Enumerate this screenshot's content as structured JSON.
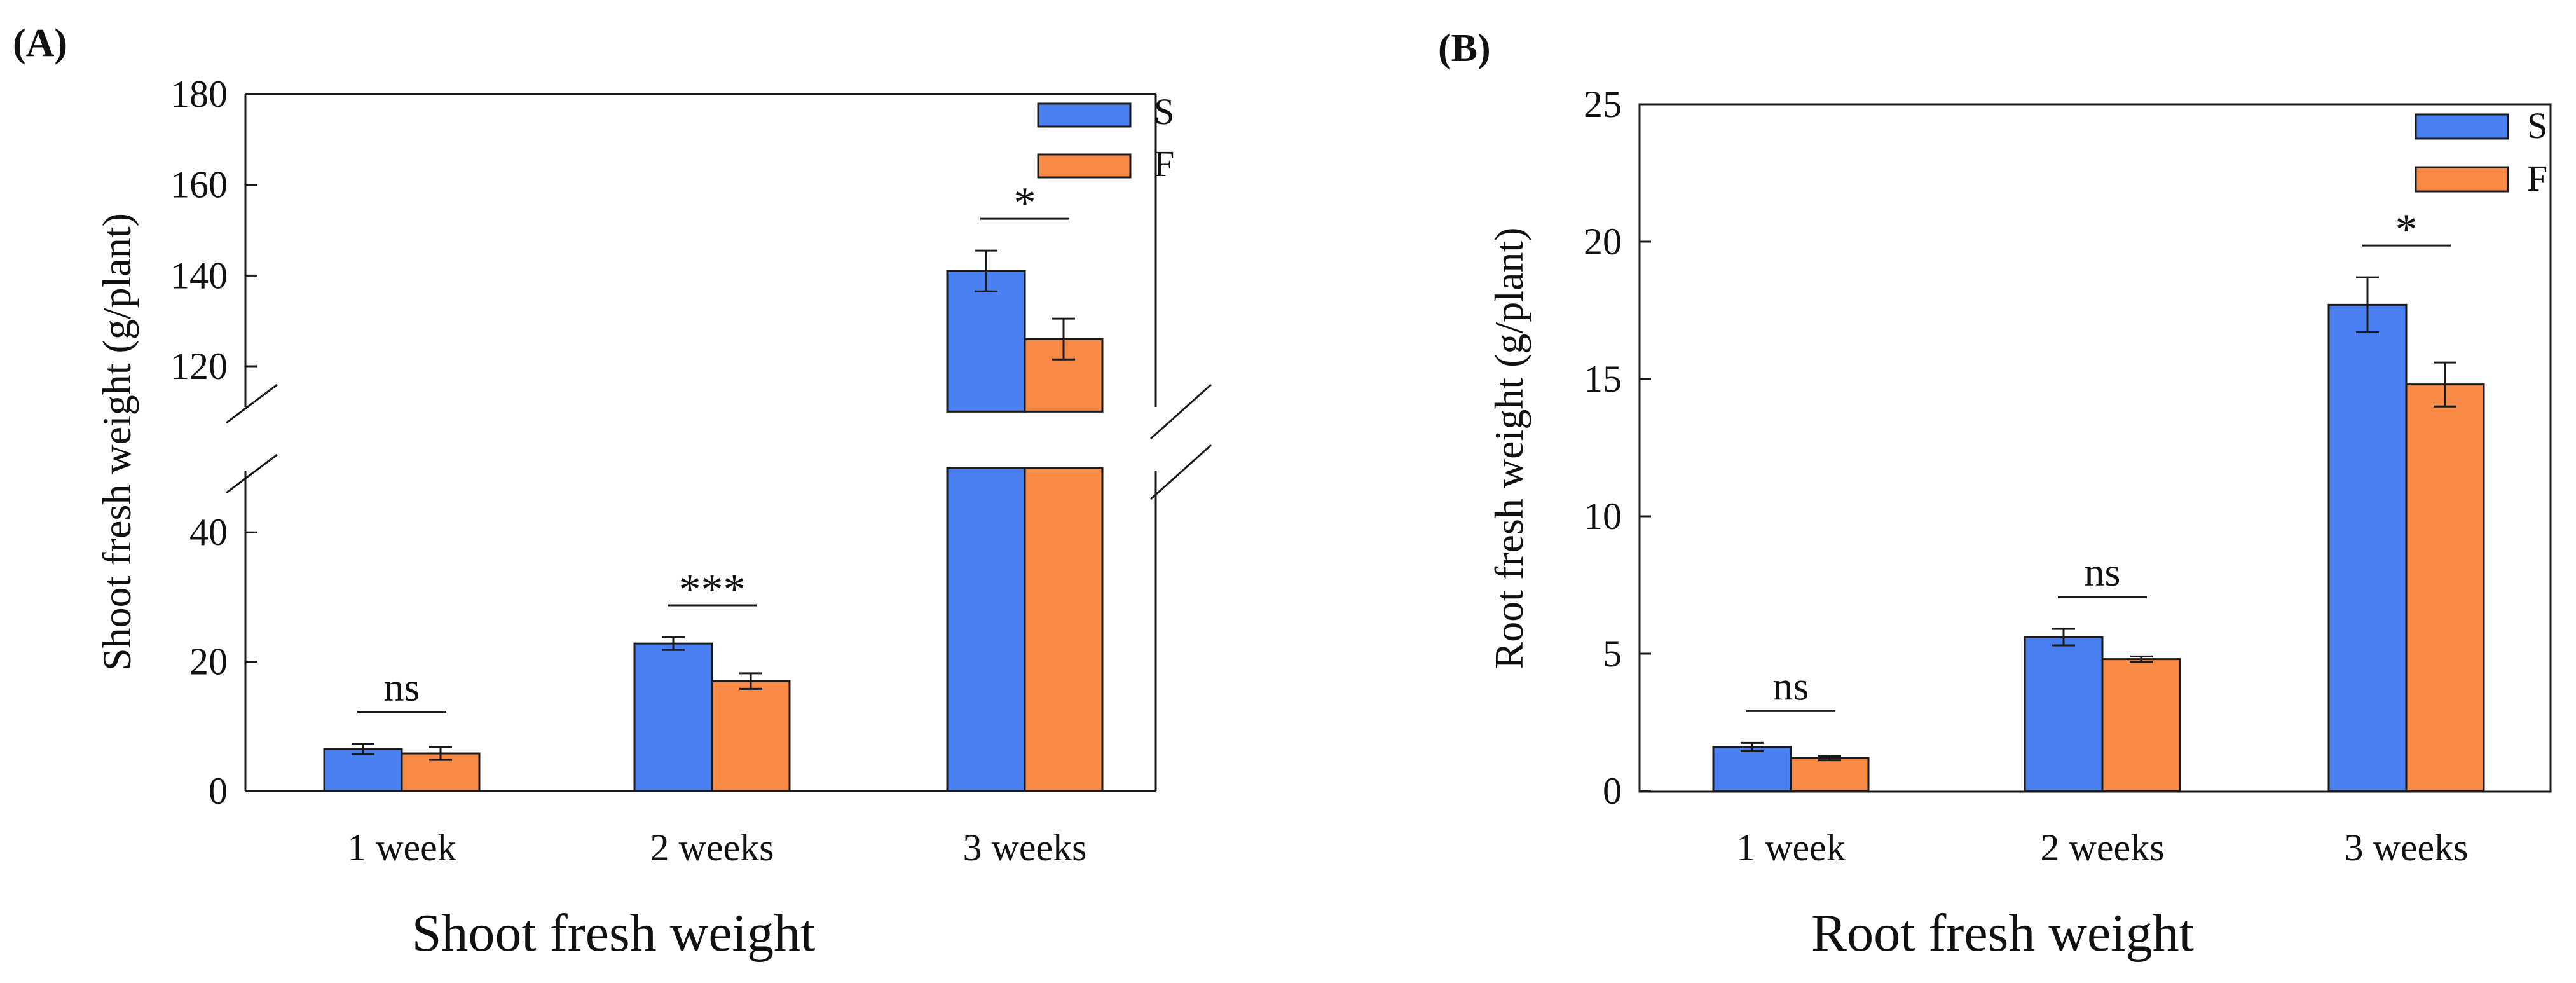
{
  "colors": {
    "S": "#4a7ff2",
    "F": "#f98a45"
  },
  "chart_data": [
    {
      "panel_label": "(A)",
      "type": "bar",
      "title": "Shoot fresh weight",
      "xlabel": "",
      "ylabel": "Shoot fresh weight (g/plant)",
      "categories": [
        "1 week",
        "2 weeks",
        "3 weeks"
      ],
      "series": [
        {
          "name": "S",
          "values": [
            6.5,
            22.8,
            141
          ],
          "errors": [
            0.8,
            1.0,
            4.5
          ]
        },
        {
          "name": "F",
          "values": [
            5.8,
            17.0,
            126
          ],
          "errors": [
            1.0,
            1.2,
            4.5
          ]
        }
      ],
      "ylim": [
        0,
        180
      ],
      "axis_break": {
        "lower_range": [
          0,
          50
        ],
        "upper_range": [
          110,
          180
        ]
      },
      "yticks": [
        0,
        20,
        40,
        120,
        140,
        160,
        180
      ],
      "significance": [
        "ns",
        "***",
        "*"
      ],
      "legend": {
        "position": "top-right",
        "entries": [
          "S",
          "F"
        ]
      }
    },
    {
      "panel_label": "(B)",
      "type": "bar",
      "title": "Root fresh weight",
      "xlabel": "",
      "ylabel": "Root fresh weight (g/plant)",
      "categories": [
        "1 week",
        "2 weeks",
        "3 weeks"
      ],
      "series": [
        {
          "name": "S",
          "values": [
            1.6,
            5.6,
            17.7
          ],
          "errors": [
            0.15,
            0.3,
            1.0
          ]
        },
        {
          "name": "F",
          "values": [
            1.2,
            4.8,
            14.8
          ],
          "errors": [
            0.08,
            0.1,
            0.8
          ]
        }
      ],
      "ylim": [
        0,
        25
      ],
      "yticks": [
        0,
        5,
        10,
        15,
        20,
        25
      ],
      "significance": [
        "ns",
        "ns",
        "*"
      ],
      "legend": {
        "position": "top-right",
        "entries": [
          "S",
          "F"
        ]
      }
    }
  ]
}
